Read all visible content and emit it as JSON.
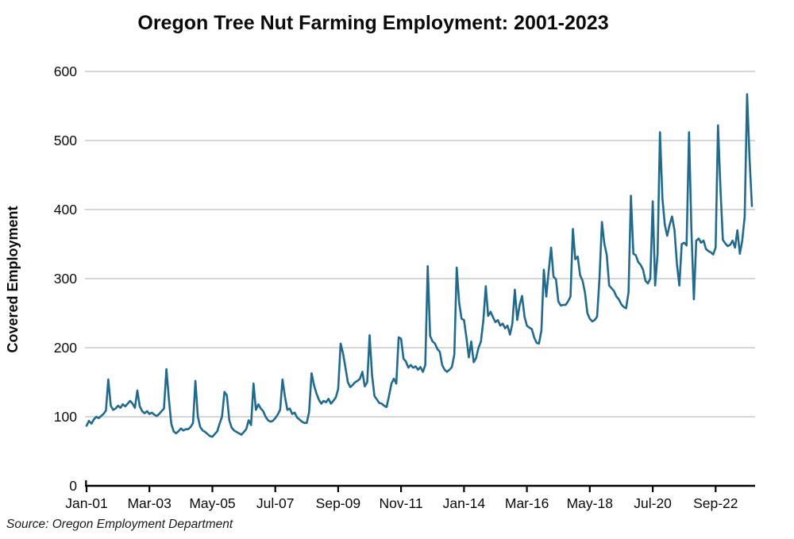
{
  "title": "Oregon Tree Nut Farming Employment: 2001-2023",
  "y_axis_label": "Covered Employment",
  "source_note": "Source: Oregon Employment Department",
  "colors": {
    "line": "#1f6b8f",
    "grid": "#c9c9c9",
    "axis": "#000000",
    "text": "#0a0a0a",
    "background": "#ffffff"
  },
  "chart_data": {
    "type": "line",
    "title": "Oregon Tree Nut Farming Employment: 2001-2023",
    "xlabel": "",
    "ylabel": "Covered Employment",
    "ylim": [
      0,
      600
    ],
    "y_ticks": [
      0,
      100,
      200,
      300,
      400,
      500,
      600
    ],
    "grid": "horizontal gridlines at each y tick",
    "legend_position": "none",
    "frequency": "monthly",
    "start": "Jan-2001",
    "end": "Dec-2023",
    "x_tick_labels": [
      "Jan-01",
      "Mar-03",
      "May-05",
      "Jul-07",
      "Sep-09",
      "Nov-11",
      "Jan-14",
      "Mar-16",
      "May-18",
      "Jul-20",
      "Sep-22"
    ],
    "x_tick_month_indices": [
      0,
      26,
      52,
      78,
      104,
      130,
      156,
      182,
      208,
      234,
      260
    ],
    "series": [
      {
        "name": "Covered Employment",
        "values": [
          87,
          94,
          90,
          96,
          100,
          98,
          101,
          104,
          109,
          154,
          116,
          110,
          112,
          116,
          113,
          118,
          115,
          119,
          123,
          119,
          113,
          138,
          115,
          108,
          105,
          108,
          104,
          106,
          103,
          101,
          104,
          108,
          112,
          169,
          127,
          90,
          79,
          76,
          79,
          83,
          80,
          82,
          82,
          85,
          91,
          152,
          100,
          85,
          80,
          78,
          75,
          72,
          71,
          75,
          79,
          90,
          100,
          136,
          131,
          95,
          84,
          80,
          78,
          76,
          74,
          78,
          82,
          95,
          88,
          148,
          110,
          118,
          112,
          108,
          100,
          95,
          93,
          94,
          98,
          103,
          110,
          154,
          129,
          110,
          112,
          104,
          106,
          99,
          96,
          93,
          91,
          91,
          107,
          163,
          146,
          134,
          125,
          119,
          123,
          121,
          126,
          119,
          123,
          128,
          140,
          206,
          192,
          171,
          150,
          143,
          146,
          150,
          152,
          155,
          165,
          144,
          150,
          218,
          160,
          130,
          125,
          120,
          119,
          116,
          114,
          130,
          148,
          155,
          148,
          215,
          213,
          184,
          180,
          171,
          175,
          171,
          173,
          168,
          172,
          165,
          175,
          318,
          217,
          209,
          206,
          198,
          194,
          175,
          168,
          165,
          168,
          172,
          190,
          316,
          265,
          242,
          240,
          215,
          186,
          209,
          179,
          185,
          200,
          209,
          240,
          289,
          246,
          252,
          244,
          237,
          240,
          232,
          235,
          228,
          232,
          219,
          235,
          284,
          240,
          262,
          275,
          245,
          232,
          229,
          227,
          215,
          207,
          206,
          225,
          313,
          274,
          310,
          345,
          303,
          299,
          267,
          261,
          262,
          262,
          267,
          274,
          372,
          328,
          332,
          305,
          297,
          280,
          250,
          242,
          238,
          240,
          245,
          300,
          382,
          351,
          334,
          290,
          286,
          282,
          274,
          270,
          263,
          259,
          257,
          280,
          420,
          336,
          334,
          324,
          320,
          313,
          297,
          293,
          300,
          412,
          290,
          336,
          512,
          416,
          378,
          362,
          378,
          390,
          370,
          322,
          290,
          350,
          352,
          348,
          512,
          370,
          270,
          355,
          358,
          352,
          355,
          343,
          340,
          338,
          335,
          345,
          522,
          430,
          356,
          351,
          347,
          349,
          355,
          345,
          370,
          336,
          355,
          390,
          567,
          474,
          405
        ]
      }
    ]
  }
}
